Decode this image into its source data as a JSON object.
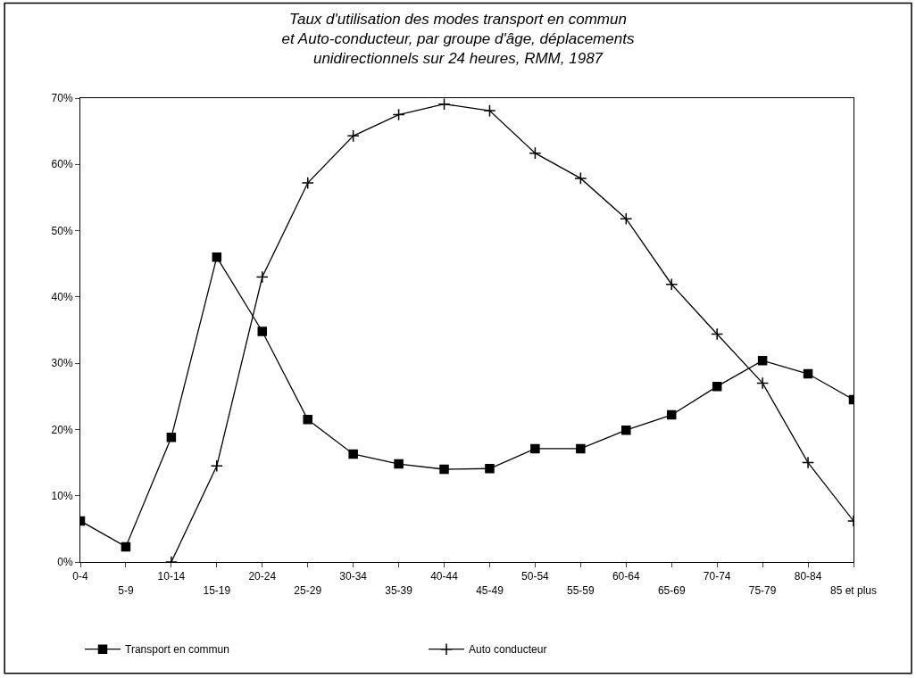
{
  "chart_data": {
    "type": "line",
    "title": "Taux d'utilisation des modes transport en commun\net Auto-conducteur, par groupe d'âge, déplacements\nunidirectionnels sur 24 heures, RMM, 1987",
    "categories": [
      "0-4",
      "5-9",
      "10-14",
      "15-19",
      "20-24",
      "25-29",
      "30-34",
      "35-39",
      "40-44",
      "45-49",
      "50-54",
      "55-59",
      "60-64",
      "65-69",
      "70-74",
      "75-79",
      "80-84",
      "85 et plus"
    ],
    "series": [
      {
        "name": "Transport en commun",
        "color": "#000000",
        "marker": "square",
        "values": [
          6.2,
          2.3,
          18.8,
          46.0,
          34.8,
          21.5,
          16.3,
          14.8,
          14.0,
          14.1,
          17.1,
          17.1,
          19.9,
          22.2,
          26.5,
          30.4,
          28.4,
          24.5
        ]
      },
      {
        "name": "Auto conducteur",
        "color": "#000000",
        "marker": "cross",
        "values": [
          null,
          null,
          0,
          14.5,
          43.0,
          57.2,
          64.3,
          67.5,
          69.1,
          68.1,
          61.7,
          57.9,
          51.8,
          41.9,
          34.4,
          27.0,
          15.0,
          6.2
        ]
      }
    ],
    "ylim": [
      0,
      70
    ],
    "yticks": [
      {
        "value": 0,
        "label": "0%"
      },
      {
        "value": 10,
        "label": "10%"
      },
      {
        "value": 20,
        "label": "20%"
      },
      {
        "value": 30,
        "label": "30%"
      },
      {
        "value": 40,
        "label": "40%"
      },
      {
        "value": 50,
        "label": "50%"
      },
      {
        "value": 60,
        "label": "60%"
      },
      {
        "value": 70,
        "label": "70%"
      }
    ],
    "legend": "bottom",
    "line_style": "solid"
  }
}
